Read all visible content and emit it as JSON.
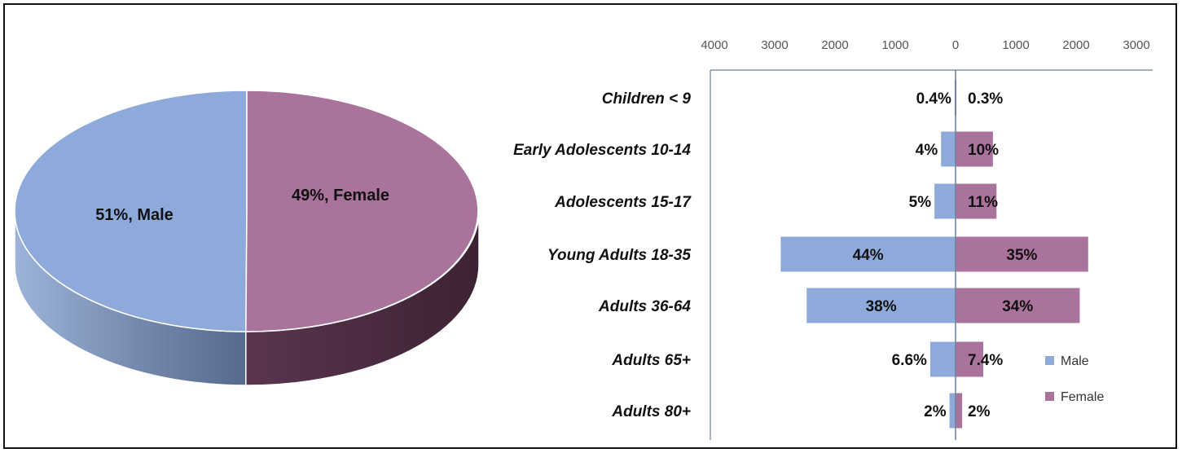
{
  "colors": {
    "male": "#8eaadb",
    "female": "#a9739c",
    "male_side": "#556a8e",
    "female_side": "#4a2b40",
    "axis": "#6b7f9a"
  },
  "chart_data": [
    {
      "type": "pie",
      "title": "",
      "slices": [
        {
          "label": "51%, Male",
          "value": 51,
          "name": "Male"
        },
        {
          "label": "49%, Female",
          "value": 49,
          "name": "Female"
        }
      ]
    },
    {
      "type": "bar",
      "orientation": "horizontal",
      "title": "",
      "xlabel": "",
      "ylabel": "",
      "xticks": [
        "4000",
        "3000",
        "2000",
        "1000",
        "0",
        "1000",
        "2000",
        "3000"
      ],
      "xlim": [
        -4000,
        3000
      ],
      "categories": [
        "Children  < 9",
        "Early Adolescents 10-14",
        "Adolescents 15-17",
        "Young Adults 18-35",
        "Adults  36-64",
        "Adults 65+",
        "Adults 80+"
      ],
      "series": [
        {
          "name": "Male",
          "values": [
            15,
            240,
            350,
            2900,
            2470,
            420,
            100
          ],
          "labels": [
            "0.4%",
            "4%",
            "5%",
            "44%",
            "38%",
            "6.6%",
            "2%"
          ]
        },
        {
          "name": "Female",
          "values": [
            15,
            620,
            680,
            2200,
            2060,
            460,
            110
          ],
          "labels": [
            "0.3%",
            "10%",
            "11%",
            "35%",
            "34%",
            "7.4%",
            "2%"
          ]
        }
      ],
      "legend": {
        "position": "right",
        "entries": [
          "Male",
          "Female"
        ]
      }
    }
  ]
}
